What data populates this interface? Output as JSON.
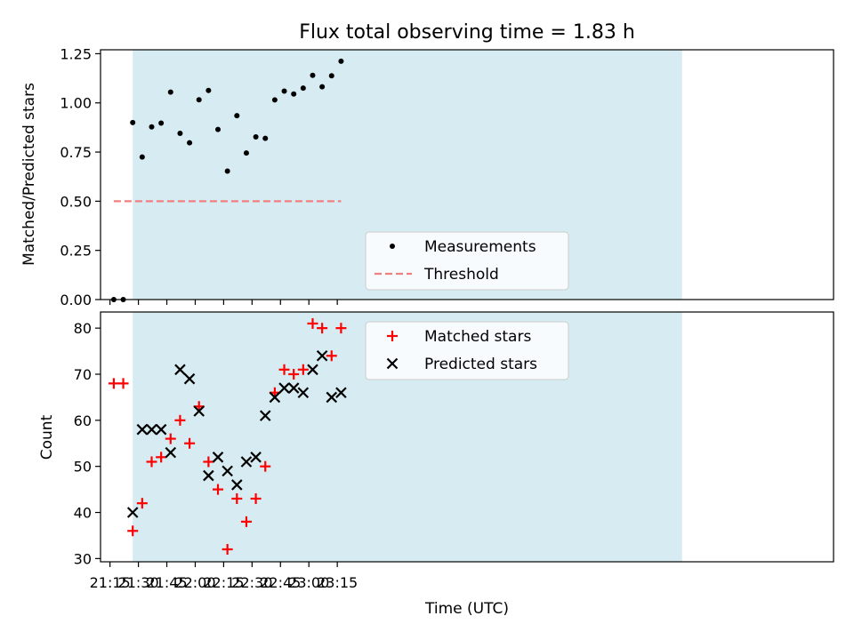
{
  "chart_data": [
    {
      "type": "scatter",
      "title": "Flux total observing time = 1.83 h",
      "xlabel": "",
      "ylabel": "Matched/Predicted stars",
      "ylim": [
        0,
        1.27
      ],
      "yticks": [
        "0.00",
        "0.25",
        "0.50",
        "0.75",
        "1.00",
        "1.25"
      ],
      "x_unit": "minutes_since_21:00",
      "xlim": [
        10,
        397
      ],
      "shaded_span": [
        27,
        317
      ],
      "legend_position": "lower-center",
      "series": [
        {
          "name": "Measurements",
          "marker": "dot",
          "color": "#000000",
          "x": [
            17,
            22,
            27,
            32,
            37,
            42,
            47,
            52,
            57,
            62,
            67,
            72,
            77,
            82,
            87,
            92,
            97,
            102,
            107,
            112,
            117,
            122,
            127,
            132,
            137
          ],
          "y": [
            0.0,
            0.0,
            0.9,
            0.725,
            0.878,
            0.897,
            1.055,
            0.845,
            0.797,
            1.016,
            1.063,
            0.865,
            0.653,
            0.935,
            0.745,
            0.827,
            0.82,
            1.015,
            1.06,
            1.045,
            1.075,
            1.14,
            1.082,
            1.138,
            1.212
          ]
        },
        {
          "name": "Threshold",
          "marker": "dashed-line",
          "color": "#f08080",
          "x": [
            17,
            137
          ],
          "y": [
            0.5,
            0.5
          ]
        }
      ]
    },
    {
      "type": "scatter",
      "title": "",
      "xlabel": "Time (UTC)",
      "ylabel": "Count",
      "ylim": [
        29.3,
        83.5
      ],
      "yticks": [
        "30",
        "40",
        "50",
        "60",
        "70",
        "80"
      ],
      "xticks": [
        "21:15",
        "21:30",
        "21:45",
        "22:00",
        "22:15",
        "22:30",
        "22:45",
        "23:00",
        "23:15"
      ],
      "legend_position": "upper-center",
      "series": [
        {
          "name": "Matched stars",
          "marker": "plus",
          "color": "#ff0000",
          "x": [
            17,
            22,
            27,
            32,
            37,
            42,
            47,
            52,
            57,
            62,
            67,
            72,
            77,
            82,
            87,
            92,
            97,
            102,
            107,
            112,
            117,
            122,
            127,
            132,
            137
          ],
          "y": [
            68,
            68,
            36,
            42,
            51,
            52,
            56,
            60,
            55,
            63,
            51,
            45,
            32,
            43,
            38,
            43,
            50,
            66,
            71,
            70,
            71,
            81,
            80,
            74,
            80
          ]
        },
        {
          "name": "Predicted stars",
          "marker": "x",
          "color": "#000000",
          "x": [
            27,
            32,
            37,
            42,
            47,
            52,
            57,
            62,
            67,
            72,
            77,
            82,
            87,
            92,
            97,
            102,
            107,
            112,
            117,
            122,
            127,
            132,
            137
          ],
          "y": [
            40,
            58,
            58,
            58,
            53,
            71,
            69,
            62,
            48,
            52,
            49,
            46,
            51,
            52,
            61,
            65,
            67,
            67,
            66,
            71,
            74,
            65,
            66
          ]
        }
      ]
    }
  ]
}
